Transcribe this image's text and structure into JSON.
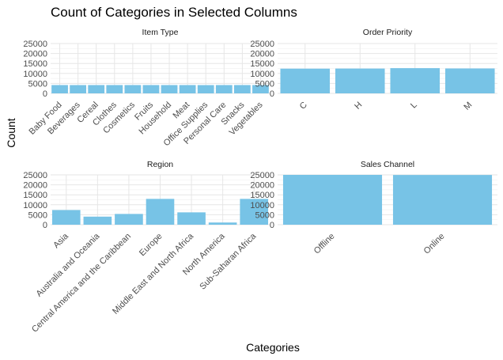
{
  "title": "Count of Categories in Selected Columns",
  "xlabel": "Categories",
  "ylabel": "Count",
  "colors": {
    "bar": "#77c3e6",
    "grid_major": "#e6e6e6",
    "grid_minor": "#f2f2f2"
  },
  "chart_data": [
    {
      "type": "bar",
      "facet": "Item Type",
      "categories": [
        "Baby Food",
        "Beverages",
        "Cereal",
        "Clothes",
        "Cosmetics",
        "Fruits",
        "Household",
        "Meat",
        "Office Supplies",
        "Personal Care",
        "Snacks",
        "Vegetables"
      ],
      "values": [
        4170,
        4160,
        4170,
        4170,
        4170,
        4170,
        4165,
        4170,
        4150,
        4170,
        4175,
        4170
      ],
      "ylim": [
        0,
        25000
      ],
      "yticks": [
        "0",
        "5000",
        "10000",
        "15000",
        "20000",
        "25000"
      ]
    },
    {
      "type": "bar",
      "facet": "Order Priority",
      "categories": [
        "C",
        "H",
        "L",
        "M"
      ],
      "values": [
        12400,
        12450,
        12650,
        12500
      ],
      "ylim": [
        0,
        25000
      ],
      "yticks": [
        "0",
        "5000",
        "10000",
        "15000",
        "20000",
        "25000"
      ]
    },
    {
      "type": "bar",
      "facet": "Region",
      "categories": [
        "Asia",
        "Australia and Oceania",
        "Central America and the Caribbean",
        "Europe",
        "Middle East and North Africa",
        "North America",
        "Sub-Saharan Africa"
      ],
      "values": [
        7350,
        4050,
        5400,
        12950,
        6200,
        1100,
        12950
      ],
      "ylim": [
        0,
        25000
      ],
      "yticks": [
        "0",
        "5000",
        "10000",
        "15000",
        "20000",
        "25000"
      ]
    },
    {
      "type": "bar",
      "facet": "Sales Channel",
      "categories": [
        "Offline",
        "Online"
      ],
      "values": [
        25050,
        24950
      ],
      "ylim": [
        0,
        25000
      ],
      "yticks": [
        "0",
        "5000",
        "10000",
        "15000",
        "20000",
        "25000"
      ]
    }
  ]
}
